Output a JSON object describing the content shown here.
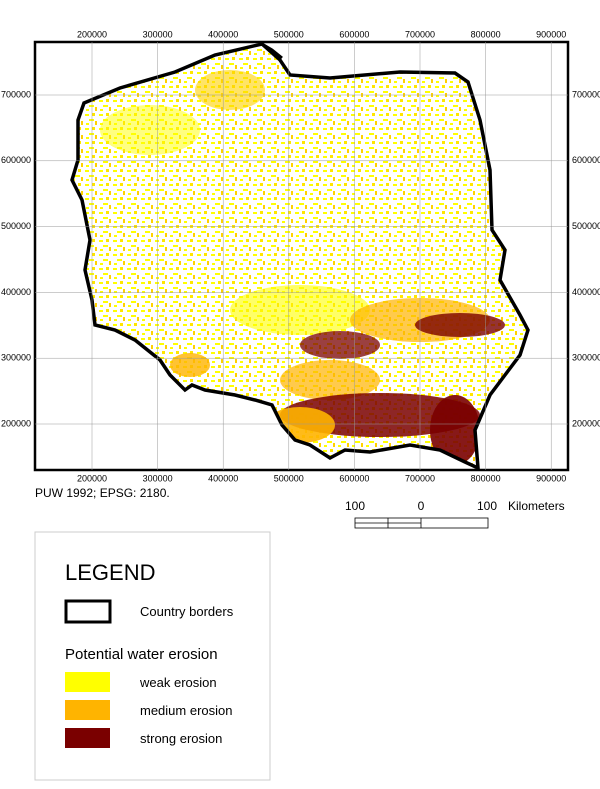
{
  "map": {
    "xticks": [
      200000,
      300000,
      400000,
      500000,
      600000,
      700000,
      800000,
      900000
    ],
    "yticks": [
      200000,
      300000,
      400000,
      500000,
      600000,
      700000
    ],
    "source": "PUW 1992; EPSG: 2180.",
    "scale_bar": {
      "labels": [
        "100",
        "0",
        "100"
      ],
      "unit": "Kilometers"
    },
    "legend": {
      "title": "LEGEND",
      "border_label": "Country borders",
      "section_title": "Potential water erosion",
      "items": [
        {
          "label": "weak erosion",
          "color": "#ffff00"
        },
        {
          "label": "medium erosion",
          "color": "#ffb400"
        },
        {
          "label": "strong erosion",
          "color": "#7a0000"
        }
      ]
    }
  }
}
